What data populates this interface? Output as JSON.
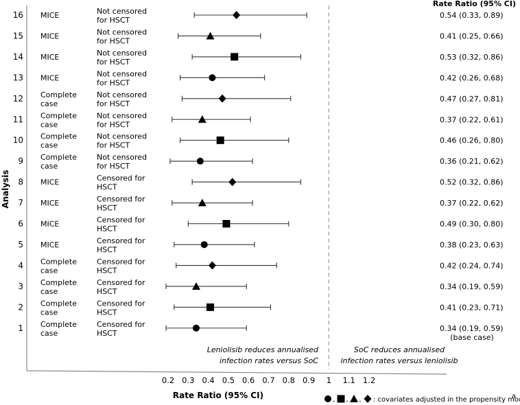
{
  "chart_data": {
    "type": "forest",
    "y_axis_label": "Analysis",
    "x_axis_label": "Rate Ratio (95% CI)",
    "rate_ratio_header": "Rate Ratio (95% CI)",
    "x_range": [
      0.2,
      1.2
    ],
    "x_ticks": [
      {
        "value": 0.2,
        "label": "0.2"
      },
      {
        "value": 0.3,
        "label": "0.3"
      },
      {
        "value": 0.4,
        "label": "0.4"
      },
      {
        "value": 0.5,
        "label": "0.5"
      },
      {
        "value": 0.6,
        "label": "0.6"
      },
      {
        "value": 0.7,
        "label": "0.7"
      },
      {
        "value": 0.8,
        "label": "0.8"
      },
      {
        "value": 0.9,
        "label": "0.9"
      },
      {
        "value": 1.0,
        "label": "1"
      },
      {
        "value": 1.1,
        "label": "1.1"
      },
      {
        "value": 1.2,
        "label": "1.2"
      }
    ],
    "reference_line": 1.0,
    "annotation_left": [
      "Leniolisib reduces annualised",
      "infection rates versus SoC"
    ],
    "annotation_right": [
      "SoC reduces annualised",
      "infection rates versus leniolisib"
    ],
    "legend": {
      "symbols": [
        "circle",
        "square",
        "triangle",
        "diamond"
      ],
      "separator": ",",
      "text": ": covariates adjusted in the propensity model",
      "superscript": "a"
    },
    "rows": [
      {
        "analysis": "16",
        "method": [
          "MICE"
        ],
        "censoring": [
          "Not censored",
          "for HSCT"
        ],
        "estimate": 0.54,
        "lower": 0.33,
        "upper": 0.89,
        "marker": "diamond",
        "label": "0.54 (0.33, 0.89)"
      },
      {
        "analysis": "15",
        "method": [
          "MICE"
        ],
        "censoring": [
          "Not censored",
          "for HSCT"
        ],
        "estimate": 0.41,
        "lower": 0.25,
        "upper": 0.66,
        "marker": "triangle",
        "label": "0.41 (0.25, 0.66)"
      },
      {
        "analysis": "14",
        "method": [
          "MICE"
        ],
        "censoring": [
          "Not censored",
          "for HSCT"
        ],
        "estimate": 0.53,
        "lower": 0.32,
        "upper": 0.86,
        "marker": "square",
        "label": "0.53 (0.32, 0.86)"
      },
      {
        "analysis": "13",
        "method": [
          "MICE"
        ],
        "censoring": [
          "Not censored",
          "for HSCT"
        ],
        "estimate": 0.42,
        "lower": 0.26,
        "upper": 0.68,
        "marker": "circle",
        "label": "0.42 (0.26, 0.68)"
      },
      {
        "analysis": "12",
        "method": [
          "Complete",
          "case"
        ],
        "censoring": [
          "Not censored",
          "for HSCT"
        ],
        "estimate": 0.47,
        "lower": 0.27,
        "upper": 0.81,
        "marker": "diamond",
        "label": "0.47 (0.27, 0.81)"
      },
      {
        "analysis": "11",
        "method": [
          "Complete",
          "case"
        ],
        "censoring": [
          "Not censored",
          "for HSCT"
        ],
        "estimate": 0.37,
        "lower": 0.22,
        "upper": 0.61,
        "marker": "triangle",
        "label": "0.37 (0.22, 0.61)"
      },
      {
        "analysis": "10",
        "method": [
          "Complete",
          "case"
        ],
        "censoring": [
          "Not censored",
          "for HSCT"
        ],
        "estimate": 0.46,
        "lower": 0.26,
        "upper": 0.8,
        "marker": "square",
        "label": "0.46 (0.26, 0.80)"
      },
      {
        "analysis": "9",
        "method": [
          "Complete",
          "case"
        ],
        "censoring": [
          "Not censored",
          "for HSCT"
        ],
        "estimate": 0.36,
        "lower": 0.21,
        "upper": 0.62,
        "marker": "circle",
        "label": "0.36 (0.21, 0.62)"
      },
      {
        "analysis": "8",
        "method": [
          "MICE"
        ],
        "censoring": [
          "Censored for",
          "HSCT"
        ],
        "estimate": 0.52,
        "lower": 0.32,
        "upper": 0.86,
        "marker": "diamond",
        "label": "0.52 (0.32, 0.86)"
      },
      {
        "analysis": "7",
        "method": [
          "MICE"
        ],
        "censoring": [
          "Censored for",
          "HSCT"
        ],
        "estimate": 0.37,
        "lower": 0.22,
        "upper": 0.62,
        "marker": "triangle",
        "label": "0.37 (0.22, 0.62)"
      },
      {
        "analysis": "6",
        "method": [
          "MICE"
        ],
        "censoring": [
          "Censored for",
          "HSCT"
        ],
        "estimate": 0.49,
        "lower": 0.3,
        "upper": 0.8,
        "marker": "square",
        "label": "0.49 (0.30, 0.80)"
      },
      {
        "analysis": "5",
        "method": [
          "MICE"
        ],
        "censoring": [
          "Censored for",
          "HSCT"
        ],
        "estimate": 0.38,
        "lower": 0.23,
        "upper": 0.63,
        "marker": "circle",
        "label": "0.38 (0.23, 0.63)"
      },
      {
        "analysis": "4",
        "method": [
          "Complete",
          "case"
        ],
        "censoring": [
          "Censored for",
          "HSCT"
        ],
        "estimate": 0.42,
        "lower": 0.24,
        "upper": 0.74,
        "marker": "diamond",
        "label": "0.42 (0.24, 0.74)"
      },
      {
        "analysis": "3",
        "method": [
          "Complete",
          "case"
        ],
        "censoring": [
          "Censored for",
          "HSCT"
        ],
        "estimate": 0.34,
        "lower": 0.19,
        "upper": 0.59,
        "marker": "triangle",
        "label": "0.34 (0.19, 0.59)"
      },
      {
        "analysis": "2",
        "method": [
          "Complete",
          "case"
        ],
        "censoring": [
          "Censored for",
          "HSCT"
        ],
        "estimate": 0.41,
        "lower": 0.23,
        "upper": 0.71,
        "marker": "square",
        "label": "0.41 (0.23, 0.71)"
      },
      {
        "analysis": "1",
        "method": [
          "Complete",
          "case"
        ],
        "censoring": [
          "Censored for",
          "HSCT"
        ],
        "estimate": 0.34,
        "lower": 0.19,
        "upper": 0.59,
        "marker": "circle",
        "label": "0.34 (0.19, 0.59)",
        "note": "(base case)"
      }
    ]
  }
}
